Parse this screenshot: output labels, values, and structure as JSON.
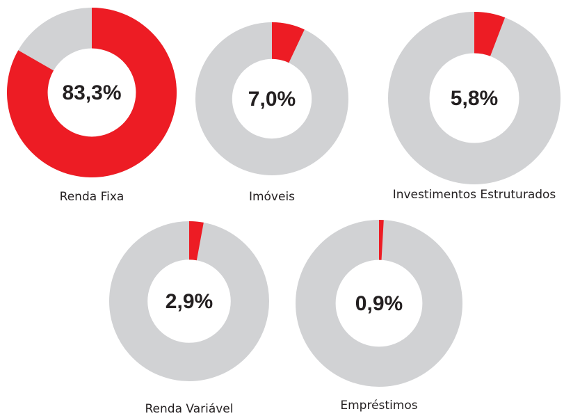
{
  "chart_data": [
    {
      "type": "pie",
      "title": "Renda Fixa",
      "values": [
        83.3
      ],
      "value_labels": [
        "83,3%"
      ],
      "ylim": [
        0,
        100
      ],
      "color": "#ed1c24",
      "track_color": "#d1d2d4"
    },
    {
      "type": "pie",
      "title": "Imóveis",
      "values": [
        7.0
      ],
      "value_labels": [
        "7,0%"
      ],
      "ylim": [
        0,
        100
      ],
      "color": "#ed1c24",
      "track_color": "#d1d2d4"
    },
    {
      "type": "pie",
      "title": "Investimentos Estruturados",
      "values": [
        5.8
      ],
      "value_labels": [
        "5,8%"
      ],
      "ylim": [
        0,
        100
      ],
      "color": "#ed1c24",
      "track_color": "#d1d2d4"
    },
    {
      "type": "pie",
      "title": "Renda Variável",
      "values": [
        2.9
      ],
      "value_labels": [
        "2,9%"
      ],
      "ylim": [
        0,
        100
      ],
      "color": "#ed1c24",
      "track_color": "#d1d2d4"
    },
    {
      "type": "pie",
      "title": "Empréstimos",
      "values": [
        0.9
      ],
      "value_labels": [
        "0,9%"
      ],
      "ylim": [
        0,
        100
      ],
      "color": "#ed1c24",
      "track_color": "#d1d2d4"
    }
  ]
}
